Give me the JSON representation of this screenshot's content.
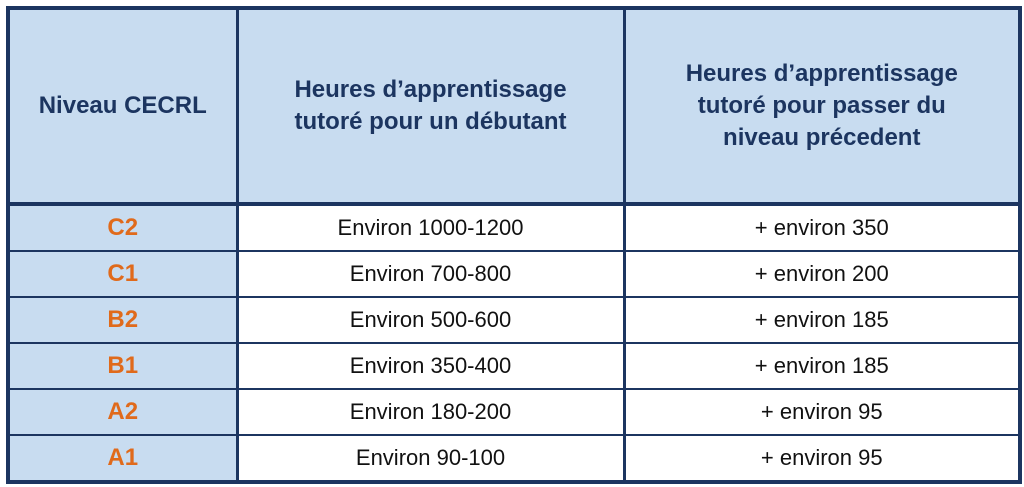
{
  "table": {
    "header": [
      "Niveau CECRL",
      "Heures d’apprentissage tutoré pour un débutant",
      "Heures d’apprentissage tutoré pour passer du niveau précedent"
    ],
    "rows": [
      [
        "C2",
        "Environ 1000-1200",
        "+ environ 350"
      ],
      [
        "C1",
        "Environ 700-800",
        "+ environ 200"
      ],
      [
        "B2",
        "Environ 500-600",
        "+ environ 185"
      ],
      [
        "B1",
        "Environ 350-400",
        "+ environ 185"
      ],
      [
        "A2",
        "Environ 180-200",
        "+ environ 95"
      ],
      [
        "A1",
        "Environ 90-100",
        "+ environ 95"
      ]
    ]
  }
}
